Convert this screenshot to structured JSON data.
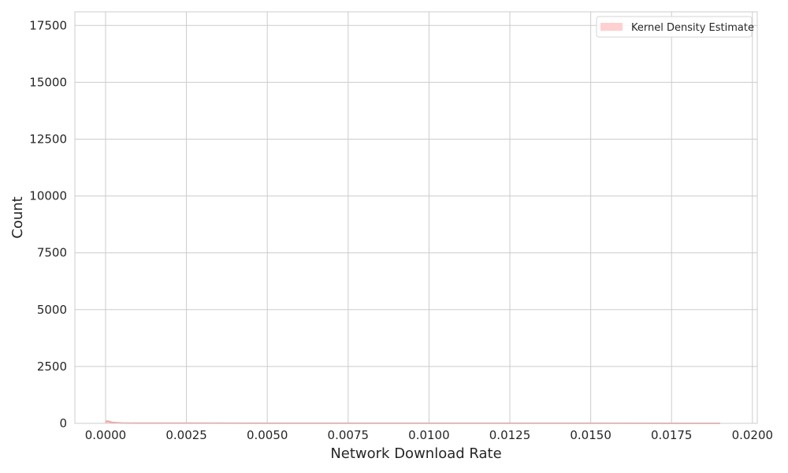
{
  "chart_data": {
    "type": "area",
    "title": "",
    "xlabel": "Network Download Rate",
    "ylabel": "Count",
    "xlim": [
      -0.00095,
      0.02015
    ],
    "ylim": [
      0,
      18100
    ],
    "x_ticks": [
      0.0,
      0.0025,
      0.005,
      0.0075,
      0.01,
      0.0125,
      0.015,
      0.0175,
      0.02
    ],
    "x_tick_labels": [
      "0.0000",
      "0.0025",
      "0.0050",
      "0.0075",
      "0.0100",
      "0.0125",
      "0.0150",
      "0.0175",
      "0.0200"
    ],
    "y_ticks": [
      0,
      2500,
      5000,
      7500,
      10000,
      12500,
      15000,
      17500
    ],
    "y_tick_labels": [
      "0",
      "2500",
      "5000",
      "7500",
      "10000",
      "12500",
      "15000",
      "17500"
    ],
    "grid": true,
    "legend_position": "top-right",
    "series": [
      {
        "name": "Kernel Density Estimate",
        "color": "#f4a3a3",
        "fill_color": "#ffd0d0",
        "x": [
          0.0,
          5e-05,
          0.0002,
          0.0005,
          0.001,
          0.002,
          0.005,
          0.01,
          0.015,
          0.019
        ],
        "values": [
          60,
          100,
          40,
          15,
          10,
          8,
          6,
          5,
          4,
          0
        ]
      }
    ]
  }
}
